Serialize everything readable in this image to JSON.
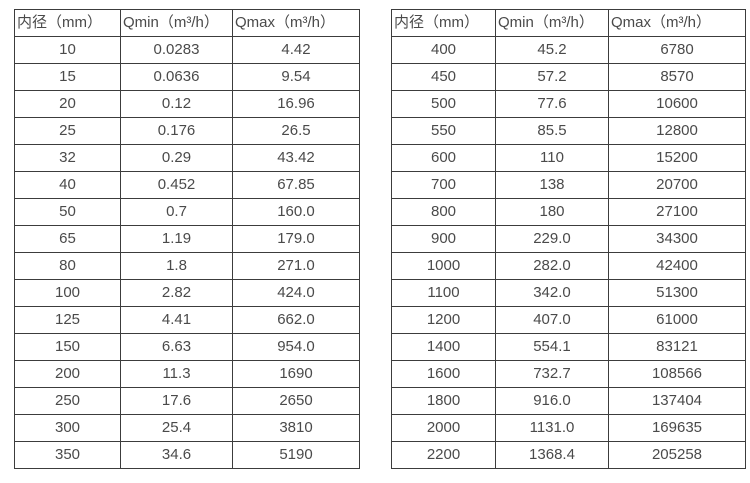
{
  "colors": {
    "border": "#3c3c3c",
    "text": "#4a4a4a",
    "background": "#ffffff"
  },
  "chart_data": [
    {
      "type": "table",
      "headers": [
        "内径（mm）",
        "Qmin（m³/h）",
        "Qmax（m³/h）"
      ],
      "rows": [
        [
          "10",
          "0.0283",
          "4.42"
        ],
        [
          "15",
          "0.0636",
          "9.54"
        ],
        [
          "20",
          "0.12",
          "16.96"
        ],
        [
          "25",
          "0.176",
          "26.5"
        ],
        [
          "32",
          "0.29",
          "43.42"
        ],
        [
          "40",
          "0.452",
          "67.85"
        ],
        [
          "50",
          "0.7",
          "160.0"
        ],
        [
          "65",
          "1.19",
          "179.0"
        ],
        [
          "80",
          "1.8",
          "271.0"
        ],
        [
          "100",
          "2.82",
          "424.0"
        ],
        [
          "125",
          "4.41",
          "662.0"
        ],
        [
          "150",
          "6.63",
          "954.0"
        ],
        [
          "200",
          "11.3",
          "1690"
        ],
        [
          "250",
          "17.6",
          "2650"
        ],
        [
          "300",
          "25.4",
          "3810"
        ],
        [
          "350",
          "34.6",
          "5190"
        ]
      ]
    },
    {
      "type": "table",
      "headers": [
        "内径（mm）",
        "Qmin（m³/h）",
        "Qmax（m³/h）"
      ],
      "rows": [
        [
          "400",
          "45.2",
          "6780"
        ],
        [
          "450",
          "57.2",
          "8570"
        ],
        [
          "500",
          "77.6",
          "10600"
        ],
        [
          "550",
          "85.5",
          "12800"
        ],
        [
          "600",
          "110",
          "15200"
        ],
        [
          "700",
          "138",
          "20700"
        ],
        [
          "800",
          "180",
          "27100"
        ],
        [
          "900",
          "229.0",
          "34300"
        ],
        [
          "1000",
          "282.0",
          "42400"
        ],
        [
          "1100",
          "342.0",
          "51300"
        ],
        [
          "1200",
          "407.0",
          "61000"
        ],
        [
          "1400",
          "554.1",
          "83121"
        ],
        [
          "1600",
          "732.7",
          "108566"
        ],
        [
          "1800",
          "916.0",
          "137404"
        ],
        [
          "2000",
          "1131.0",
          "169635"
        ],
        [
          "2200",
          "1368.4",
          "205258"
        ]
      ]
    }
  ]
}
